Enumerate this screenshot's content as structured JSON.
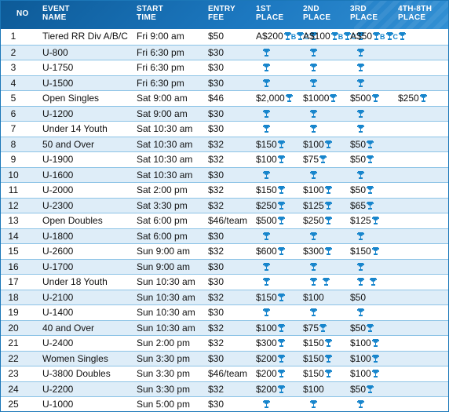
{
  "header": {
    "no": "NO",
    "event_line1": "EVENT",
    "event_line2": "NAME",
    "start_line1": "START",
    "start_line2": "TIME",
    "fee_line1": "ENTRY",
    "fee_line2": "FEE",
    "p1_line1": "1ST",
    "p1_line2": "PLACE",
    "p2_line1": "2ND",
    "p2_line2": "PLACE",
    "p3_line1": "3RD",
    "p3_line2": "PLACE",
    "p4_line1": "4TH-8TH",
    "p4_line2": "PLACE"
  },
  "colors": {
    "header": "#1c78c0",
    "alt_row": "#deedf8",
    "row_border": "#8cc3e6",
    "trophy": "#1785cc"
  },
  "icons": {
    "trophy": "trophy-icon"
  },
  "rows": [
    {
      "no": "1",
      "name": "Tiered RR Div A/B/C",
      "time": "Fri 9:00 am",
      "fee": "$50",
      "p1": "A$200",
      "p1_t": "B C",
      "p2": "A$100",
      "p2_t": "B C",
      "p3": "A$50",
      "p3_t": "B C",
      "p4": ""
    },
    {
      "no": "2",
      "name": "U-800",
      "time": "Fri 6:30 pm",
      "fee": "$30",
      "p1": "",
      "p2": "",
      "p3": "",
      "p4": ""
    },
    {
      "no": "3",
      "name": "U-1750",
      "time": "Fri 6:30 pm",
      "fee": "$30",
      "p1": "",
      "p2": "",
      "p3": "",
      "p4": ""
    },
    {
      "no": "4",
      "name": "U-1500",
      "time": "Fri 6:30 pm",
      "fee": "$30",
      "p1": "",
      "p2": "",
      "p3": "",
      "p4": ""
    },
    {
      "no": "5",
      "name": "Open Singles",
      "time": "Sat 9:00 am",
      "fee": "$46",
      "p1": "$2,000",
      "p2": "$1000",
      "p3": "$500",
      "p4": "$250"
    },
    {
      "no": "6",
      "name": "U-1200",
      "time": "Sat 9:00 am",
      "fee": "$30",
      "p1": "",
      "p2": "",
      "p3": "",
      "p4": ""
    },
    {
      "no": "7",
      "name": "Under 14 Youth",
      "time": "Sat 10:30 am",
      "fee": "$30",
      "p1": "",
      "p2": "",
      "p3": "",
      "p4": ""
    },
    {
      "no": "8",
      "name": "50 and Over",
      "time": "Sat 10:30 am",
      "fee": "$32",
      "p1": "$150",
      "p2": "$100",
      "p3": "$50",
      "p4": ""
    },
    {
      "no": "9",
      "name": "U-1900",
      "time": "Sat 10:30 am",
      "fee": "$32",
      "p1": "$100",
      "p2": "$75",
      "p3": "$50",
      "p4": ""
    },
    {
      "no": "10",
      "name": "U-1600",
      "time": "Sat 10:30 am",
      "fee": "$30",
      "p1": "",
      "p2": "",
      "p3": "",
      "p4": ""
    },
    {
      "no": "11",
      "name": "U-2000",
      "time": "Sat 2:00 pm",
      "fee": "$32",
      "p1": "$150",
      "p2": "$100",
      "p3": "$50",
      "p4": ""
    },
    {
      "no": "12",
      "name": "U-2300",
      "time": "Sat 3:30 pm",
      "fee": "$32",
      "p1": "$250",
      "p2": "$125",
      "p3": "$65",
      "p4": ""
    },
    {
      "no": "13",
      "name": "Open Doubles",
      "time": "Sat 6:00 pm",
      "fee": "$46/team",
      "p1": "$500",
      "p2": "$250",
      "p3": "$125",
      "p4": ""
    },
    {
      "no": "14",
      "name": "U-1800",
      "time": "Sat 6:00 pm",
      "fee": "$30",
      "p1": "",
      "p2": "",
      "p3": "",
      "p4": ""
    },
    {
      "no": "15",
      "name": "U-2600",
      "time": "Sun 9:00 am",
      "fee": "$32",
      "p1": "$600",
      "p2": "$300",
      "p3": "$150",
      "p4": ""
    },
    {
      "no": "16",
      "name": "U-1700",
      "time": "Sun 9:00 am",
      "fee": "$30",
      "p1": "",
      "p2": "",
      "p3": "",
      "p4": ""
    },
    {
      "no": "17",
      "name": "Under 18 Youth",
      "time": "Sun 10:30 am",
      "fee": "$30",
      "p1": "",
      "p2": "",
      "p2_double": true,
      "p3": "",
      "p3_double": true,
      "p4": ""
    },
    {
      "no": "18",
      "name": "U-2100",
      "time": "Sun 10:30 am",
      "fee": "$32",
      "p1": "$150",
      "p2": "$100",
      "p2_no_trophy": true,
      "p3": "$50",
      "p3_no_trophy": true,
      "p4": ""
    },
    {
      "no": "19",
      "name": "U-1400",
      "time": "Sun 10:30 am",
      "fee": "$30",
      "p1": "",
      "p2": "",
      "p3": "",
      "p4": ""
    },
    {
      "no": "20",
      "name": "40 and Over",
      "time": "Sun 10:30 am",
      "fee": "$32",
      "p1": "$100",
      "p2": "$75",
      "p3": "$50",
      "p4": ""
    },
    {
      "no": "21",
      "name": "U-2400",
      "time": "Sun 2:00 pm",
      "fee": "$32",
      "p1": "$300",
      "p2": "$150",
      "p3": "$100",
      "p4": ""
    },
    {
      "no": "22",
      "name": "Women Singles",
      "time": "Sun 3:30 pm",
      "fee": "$30",
      "p1": "$200",
      "p2": "$150",
      "p3": "$100",
      "p4": ""
    },
    {
      "no": "23",
      "name": "U-3800 Doubles",
      "time": "Sun 3:30 pm",
      "fee": "$46/team",
      "p1": "$200",
      "p2": "$150",
      "p3": "$100",
      "p4": ""
    },
    {
      "no": "24",
      "name": "U-2200",
      "time": "Sun 3:30 pm",
      "fee": "$32",
      "p1": "$200",
      "p2": "$100",
      "p2_no_trophy": true,
      "p3": "$50",
      "p4": ""
    },
    {
      "no": "25",
      "name": "U-1000",
      "time": "Sun 5:00 pm",
      "fee": "$30",
      "p1": "",
      "p2": "",
      "p3": "",
      "p4": ""
    }
  ]
}
